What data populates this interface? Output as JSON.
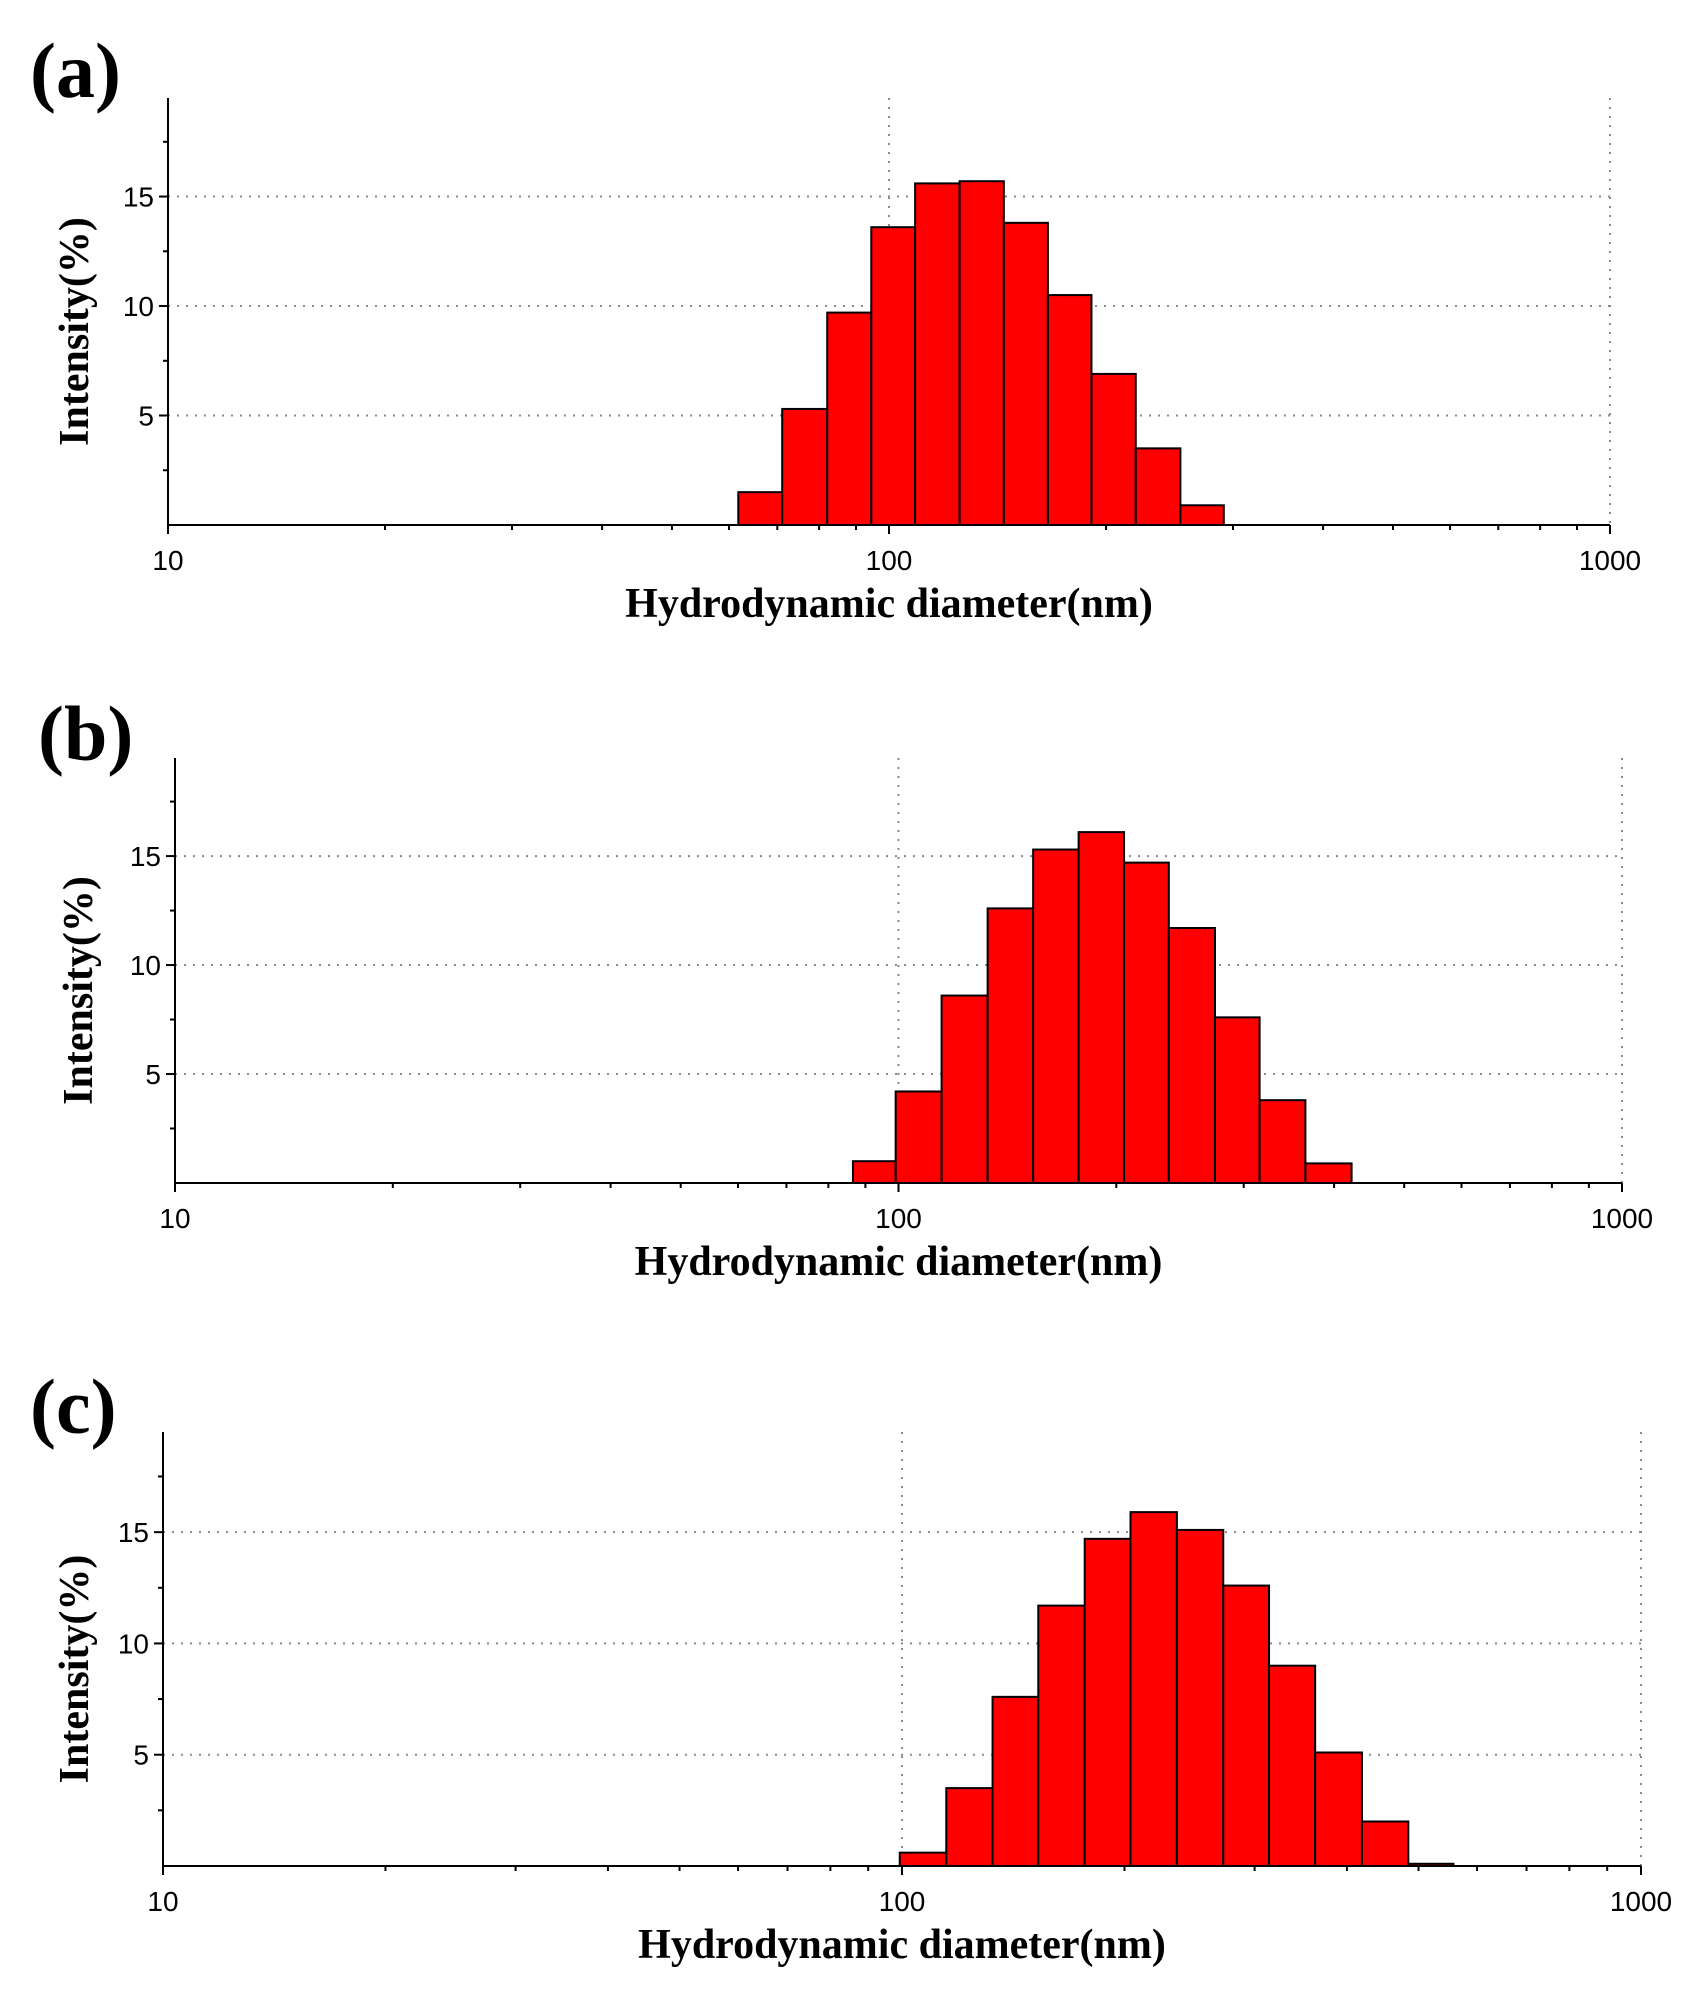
{
  "chart_data": [
    {
      "panel": "(a)",
      "type": "bar",
      "xscale": "log",
      "xlim": [
        10,
        1000
      ],
      "ylim": [
        0,
        19.5
      ],
      "xticks": [
        "10",
        "100",
        "1000"
      ],
      "yticks": [
        "5",
        "10",
        "15"
      ],
      "xlabel": "Hydrodynamic diameter(nm)",
      "ylabel": "Intensity(%)",
      "bin_edges": [
        61.8,
        71.1,
        82.1,
        94.5,
        108.7,
        125.3,
        144.3,
        166.1,
        190.9,
        219.9,
        253.6,
        291.3
      ],
      "values": [
        1.5,
        5.3,
        9.7,
        13.6,
        15.6,
        15.7,
        13.8,
        10.5,
        6.9,
        3.5,
        0.9
      ]
    },
    {
      "panel": "(b)",
      "type": "bar",
      "xscale": "log",
      "xlim": [
        10,
        1000
      ],
      "ylim": [
        0,
        19.5
      ],
      "xticks": [
        "10",
        "100",
        "1000"
      ],
      "yticks": [
        "5",
        "10",
        "15"
      ],
      "xlabel": "Hydrodynamic diameter(nm)",
      "ylabel": "Intensity(%)",
      "bin_edges": [
        86.5,
        99.1,
        114.7,
        132.8,
        153.5,
        177.4,
        205.0,
        236.4,
        273.8,
        315.6,
        365.1,
        422.9
      ],
      "values": [
        1.0,
        4.2,
        8.6,
        12.6,
        15.3,
        16.1,
        14.7,
        11.7,
        7.6,
        3.8,
        0.9
      ]
    },
    {
      "panel": "(c)",
      "type": "bar",
      "xscale": "log",
      "xlim": [
        10,
        1000
      ],
      "ylim": [
        0,
        19.5
      ],
      "xticks": [
        "10",
        "100",
        "1000"
      ],
      "yticks": [
        "5",
        "10",
        "15"
      ],
      "xlabel": "Hydrodynamic diameter(nm)",
      "ylabel": "Intensity(%)",
      "bin_edges": [
        99.3,
        114.8,
        132.6,
        152.9,
        176.7,
        203.8,
        235.5,
        272.1,
        313.8,
        362.3,
        419.2,
        484.3,
        557.3
      ],
      "values": [
        0.6,
        3.5,
        7.6,
        11.7,
        14.7,
        15.9,
        15.1,
        12.6,
        9.0,
        5.1,
        2.0,
        0.1
      ]
    }
  ]
}
